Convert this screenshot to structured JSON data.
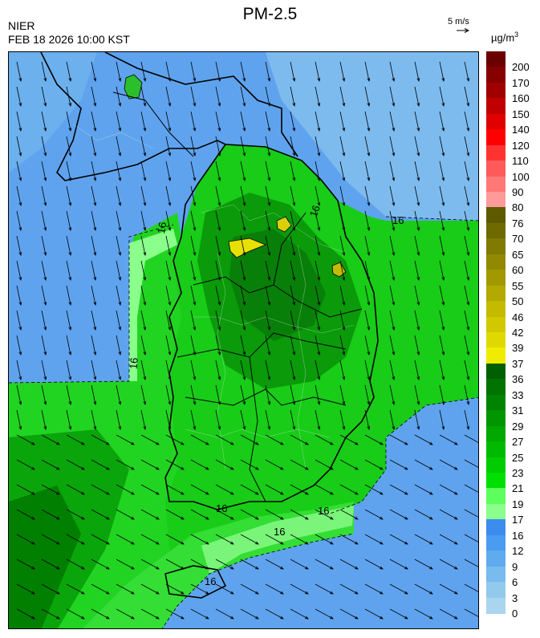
{
  "header": {
    "title": "PM-2.5",
    "org": "NIER",
    "timestamp": "FEB 18 2026 10:00 KST",
    "ref_vector": "5 m/s",
    "unit_base": "µg/m",
    "unit_exp": "3"
  },
  "map": {
    "contour_label": "16",
    "wind_direction": "north-northwest"
  },
  "colorbar": [
    {
      "label": "200",
      "color": "#6b0000"
    },
    {
      "label": "170",
      "color": "#860000"
    },
    {
      "label": "160",
      "color": "#a10000"
    },
    {
      "label": "150",
      "color": "#c00000"
    },
    {
      "label": "140",
      "color": "#e00000"
    },
    {
      "label": "120",
      "color": "#ff0000"
    },
    {
      "label": "110",
      "color": "#ff3232"
    },
    {
      "label": "100",
      "color": "#ff5a5a"
    },
    {
      "label": "90",
      "color": "#ff7878"
    },
    {
      "label": "80",
      "color": "#ff9a9a"
    },
    {
      "label": "76",
      "color": "#5e5a00"
    },
    {
      "label": "70",
      "color": "#6f6a00"
    },
    {
      "label": "65",
      "color": "#807a00"
    },
    {
      "label": "60",
      "color": "#918a00"
    },
    {
      "label": "55",
      "color": "#a29900"
    },
    {
      "label": "50",
      "color": "#b3a900"
    },
    {
      "label": "46",
      "color": "#c4ba00"
    },
    {
      "label": "42",
      "color": "#d2c800"
    },
    {
      "label": "39",
      "color": "#e0d800"
    },
    {
      "label": "37",
      "color": "#f0ec00"
    },
    {
      "label": "36",
      "color": "#005f00"
    },
    {
      "label": "33",
      "color": "#007300"
    },
    {
      "label": "31",
      "color": "#008400"
    },
    {
      "label": "29",
      "color": "#009600"
    },
    {
      "label": "27",
      "color": "#00a800"
    },
    {
      "label": "25",
      "color": "#00ba00"
    },
    {
      "label": "23",
      "color": "#00cc00"
    },
    {
      "label": "21",
      "color": "#00e000"
    },
    {
      "label": "19",
      "color": "#5cff5c"
    },
    {
      "label": "17",
      "color": "#8bff8b"
    },
    {
      "label": "16",
      "color": "#3c8cf0"
    },
    {
      "label": "12",
      "color": "#4a9cf0"
    },
    {
      "label": "9",
      "color": "#5fabee"
    },
    {
      "label": "6",
      "color": "#78bbee"
    },
    {
      "label": "3",
      "color": "#92c9ec"
    },
    {
      "label": "0",
      "color": "#a9d6ee"
    }
  ]
}
